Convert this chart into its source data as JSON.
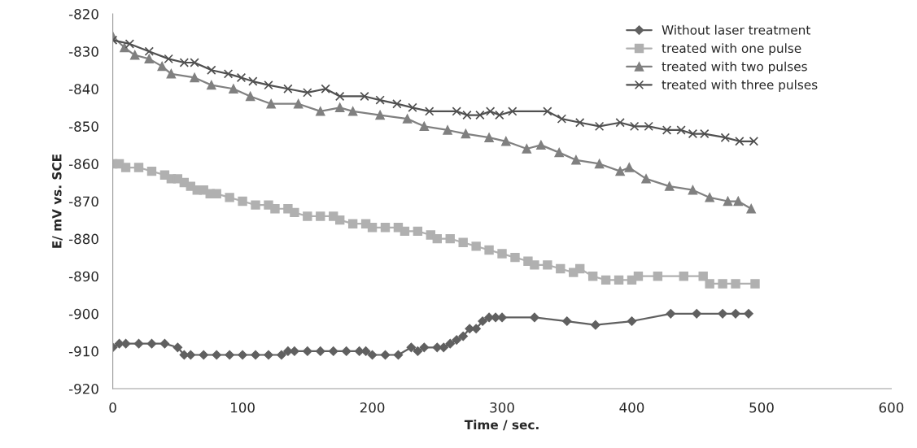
{
  "chart_data": {
    "type": "line",
    "xlabel": "Time / sec.",
    "ylabel": "E/ mV vs. SCE",
    "xlim": [
      0,
      600
    ],
    "xticks": [
      0,
      100,
      200,
      300,
      400,
      500,
      600
    ],
    "ylim": [
      -920,
      -820
    ],
    "yticks": [
      -920,
      -910,
      -900,
      -890,
      -880,
      -870,
      -860,
      -850,
      -840,
      -830,
      -820
    ],
    "grid": false,
    "legend": "top right",
    "series": [
      {
        "name": "Without laser treatment",
        "color": "#606060",
        "marker": "diamond",
        "x": [
          0,
          5,
          10,
          20,
          30,
          40,
          50,
          55,
          60,
          70,
          80,
          90,
          100,
          110,
          120,
          130,
          135,
          140,
          150,
          160,
          170,
          180,
          190,
          195,
          200,
          210,
          220,
          230,
          235,
          240,
          250,
          255,
          260,
          265,
          270,
          275,
          280,
          285,
          290,
          295,
          300,
          325,
          350,
          372,
          400,
          430,
          450,
          470,
          480,
          490
        ],
        "values": [
          -909,
          -908,
          -908,
          -908,
          -908,
          -908,
          -909,
          -911,
          -911,
          -911,
          -911,
          -911,
          -911,
          -911,
          -911,
          -911,
          -910,
          -910,
          -910,
          -910,
          -910,
          -910,
          -910,
          -910,
          -911,
          -911,
          -911,
          -909,
          -910,
          -909,
          -909,
          -909,
          -908,
          -907,
          -906,
          -904,
          -904,
          -902,
          -901,
          -901,
          -901,
          -901,
          -902,
          -903,
          -902,
          -900,
          -900,
          -900,
          -900,
          -900
        ]
      },
      {
        "name": "treated with one pulse",
        "color": "#b0b0b0",
        "marker": "square",
        "x": [
          0,
          5,
          10,
          20,
          30,
          40,
          45,
          50,
          55,
          60,
          65,
          70,
          75,
          80,
          90,
          100,
          110,
          120,
          125,
          135,
          140,
          150,
          160,
          170,
          175,
          185,
          195,
          200,
          210,
          220,
          225,
          235,
          245,
          250,
          260,
          270,
          280,
          290,
          300,
          310,
          320,
          325,
          335,
          345,
          355,
          360,
          370,
          380,
          390,
          400,
          405,
          420,
          440,
          455,
          460,
          470,
          480,
          495
        ],
        "values": [
          -860,
          -860,
          -861,
          -861,
          -862,
          -863,
          -864,
          -864,
          -865,
          -866,
          -867,
          -867,
          -868,
          -868,
          -869,
          -870,
          -871,
          -871,
          -872,
          -872,
          -873,
          -874,
          -874,
          -874,
          -875,
          -876,
          -876,
          -877,
          -877,
          -877,
          -878,
          -878,
          -879,
          -880,
          -880,
          -881,
          -882,
          -883,
          -884,
          -885,
          -886,
          -887,
          -887,
          -888,
          -889,
          -888,
          -890,
          -891,
          -891,
          -891,
          -890,
          -890,
          -890,
          -890,
          -892,
          -892,
          -892,
          -892
        ]
      },
      {
        "name": "treated with two pulses",
        "color": "#808080",
        "marker": "triangle",
        "x": [
          0,
          9,
          17,
          28,
          38,
          45,
          63,
          76,
          93,
          106,
          122,
          143,
          160,
          175,
          185,
          206,
          227,
          240,
          258,
          272,
          290,
          303,
          319,
          330,
          344,
          357,
          375,
          391,
          398,
          411,
          429,
          447,
          460,
          474,
          482,
          492
        ],
        "values": [
          -826,
          -829,
          -831,
          -832,
          -834,
          -836,
          -837,
          -839,
          -840,
          -842,
          -844,
          -844,
          -846,
          -845,
          -846,
          -847,
          -848,
          -850,
          -851,
          -852,
          -853,
          -854,
          -856,
          -855,
          -857,
          -859,
          -860,
          -862,
          -861,
          -864,
          -866,
          -867,
          -869,
          -870,
          -870,
          -872
        ]
      },
      {
        "name": "treated with three pulses",
        "color": "#505050",
        "marker": "cross",
        "x": [
          0,
          13,
          28,
          43,
          55,
          63,
          76,
          89,
          99,
          108,
          120,
          135,
          150,
          164,
          175,
          194,
          206,
          219,
          231,
          244,
          265,
          273,
          283,
          291,
          298,
          308,
          335,
          346,
          360,
          375,
          391,
          402,
          413,
          427,
          438,
          447,
          456,
          472,
          483,
          494
        ],
        "values": [
          -827,
          -828,
          -830,
          -832,
          -833,
          -833,
          -835,
          -836,
          -837,
          -838,
          -839,
          -840,
          -841,
          -840,
          -842,
          -842,
          -843,
          -844,
          -845,
          -846,
          -846,
          -847,
          -847,
          -846,
          -847,
          -846,
          -846,
          -848,
          -849,
          -850,
          -849,
          -850,
          -850,
          -851,
          -851,
          -852,
          -852,
          -853,
          -854,
          -854
        ]
      }
    ]
  }
}
